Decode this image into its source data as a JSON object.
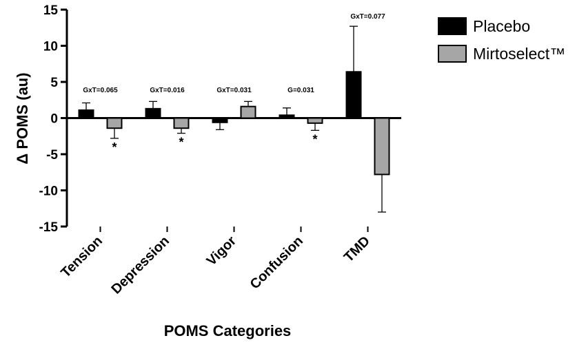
{
  "chart_data": {
    "type": "bar",
    "title": "",
    "xlabel": "POMS Categories",
    "ylabel": "Δ POMS (au)",
    "ylim": [
      -15,
      15
    ],
    "yticks": [
      15,
      10,
      5,
      0,
      -5,
      -10,
      -15
    ],
    "grid": false,
    "legend_position": "top-right",
    "categories": [
      "Tension",
      "Depression",
      "Vigor",
      "Confusion",
      "TMD"
    ],
    "series": [
      {
        "name": "Placebo",
        "color": "#000000",
        "values": [
          1.1,
          1.3,
          -0.6,
          0.4,
          6.4
        ],
        "errors": [
          1.0,
          1.0,
          1.0,
          1.0,
          6.3
        ]
      },
      {
        "name": "Mirtoselect™",
        "color": "#a6a6a6",
        "values": [
          -1.4,
          -1.4,
          1.6,
          -0.7,
          -7.8
        ],
        "errors": [
          1.4,
          0.7,
          0.7,
          1.0,
          5.2
        ]
      }
    ],
    "annotations": [
      "GxT=0.065",
      "GxT=0.016",
      "GxT=0.031",
      "G=0.031",
      "GxT=0.077"
    ],
    "significance": [
      "*",
      "*",
      "",
      "*",
      ""
    ]
  }
}
